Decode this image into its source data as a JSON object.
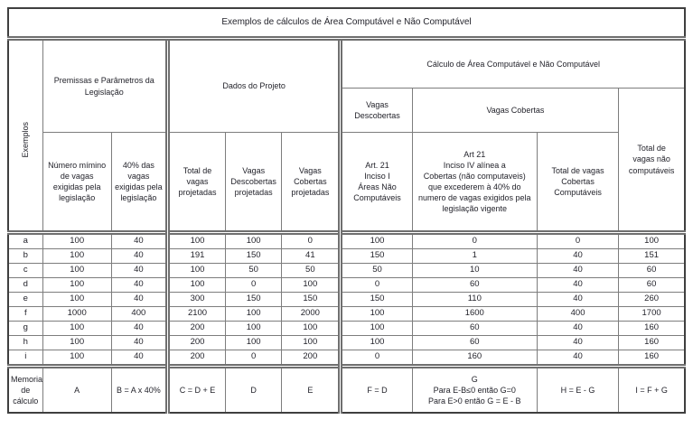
{
  "title": "Exemplos de cálculos de Área Computável e Não Computável",
  "header": {
    "exemplos": "Exemplos",
    "groups": {
      "premissas": "Premissas e Parâmetros da\nLegislação",
      "dados": "Dados do Projeto",
      "calculo": "Cálculo de Área Computável e Não Computável"
    },
    "subgroups": {
      "vagas_descobertas": "Vagas Descobertas",
      "vagas_cobertas": "Vagas Cobertas"
    },
    "columns": {
      "A": "Número mímino\nde vagas\nexigidas pela\nlegislação",
      "B": "40% das\nvagas\nexigidas pela\nlegislação",
      "C": "Total de\nvagas\nprojetadas",
      "D": "Vagas\nDescobertas\nprojetadas",
      "E": "Vagas Cobertas\nprojetadas",
      "F": "Art. 21\nInciso I\nÁreas Não\nComputáveis",
      "G": "Art 21\nInciso IV alínea a\nCobertas (não computaveis)\nque excederem à 40% do\nnumero de vagas exigidos pela\nlegislação vigente",
      "H": "Total de vagas\nCobertas\nComputáveis",
      "I": "Total de\nvagas não\ncomputáveis"
    }
  },
  "rows": [
    {
      "label": "a",
      "values": [
        "100",
        "40",
        "100",
        "100",
        "0",
        "100",
        "0",
        "0",
        "100"
      ]
    },
    {
      "label": "b",
      "values": [
        "100",
        "40",
        "191",
        "150",
        "41",
        "150",
        "1",
        "40",
        "151"
      ]
    },
    {
      "label": "c",
      "values": [
        "100",
        "40",
        "100",
        "50",
        "50",
        "50",
        "10",
        "40",
        "60"
      ]
    },
    {
      "label": "d",
      "values": [
        "100",
        "40",
        "100",
        "0",
        "100",
        "0",
        "60",
        "40",
        "60"
      ]
    },
    {
      "label": "e",
      "values": [
        "100",
        "40",
        "300",
        "150",
        "150",
        "150",
        "110",
        "40",
        "260"
      ]
    },
    {
      "label": "f",
      "values": [
        "1000",
        "400",
        "2100",
        "100",
        "2000",
        "100",
        "1600",
        "400",
        "1700"
      ]
    },
    {
      "label": "g",
      "values": [
        "100",
        "40",
        "200",
        "100",
        "100",
        "100",
        "60",
        "40",
        "160"
      ]
    },
    {
      "label": "h",
      "values": [
        "100",
        "40",
        "200",
        "100",
        "100",
        "100",
        "60",
        "40",
        "160"
      ]
    },
    {
      "label": "i",
      "values": [
        "100",
        "40",
        "200",
        "0",
        "200",
        "0",
        "160",
        "40",
        "160"
      ]
    }
  ],
  "memoria": {
    "label": "Memoria\nde cálculo",
    "formulas": [
      "A",
      "B = A x 40%",
      "C = D + E",
      "D",
      "E",
      "F = D",
      "G\nPara E-B≤0 então  G=0\nPara E>0 então G = E - B",
      "H = E - G",
      "I = F + G"
    ]
  }
}
